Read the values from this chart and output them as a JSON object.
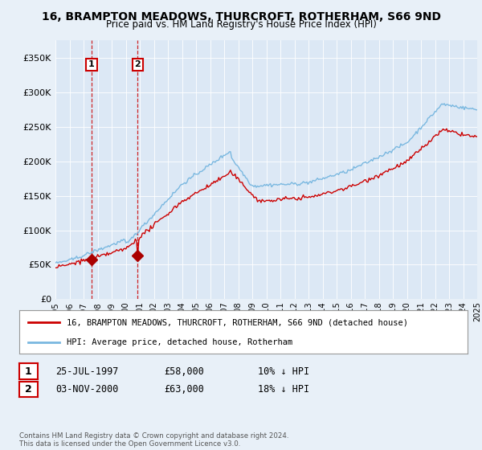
{
  "title": "16, BRAMPTON MEADOWS, THURCROFT, ROTHERHAM, S66 9ND",
  "subtitle": "Price paid vs. HM Land Registry's House Price Index (HPI)",
  "bg_color": "#e8f0f8",
  "plot_bg_color": "#dce8f5",
  "legend_line1": "16, BRAMPTON MEADOWS, THURCROFT, ROTHERHAM, S66 9ND (detached house)",
  "legend_line2": "HPI: Average price, detached house, Rotherham",
  "transaction1_date": "25-JUL-1997",
  "transaction1_price": 58000,
  "transaction1_hpi": "10% ↓ HPI",
  "transaction2_date": "03-NOV-2000",
  "transaction2_price": 63000,
  "transaction2_hpi": "18% ↓ HPI",
  "footer": "Contains HM Land Registry data © Crown copyright and database right 2024.\nThis data is licensed under the Open Government Licence v3.0.",
  "hpi_color": "#7ab8e0",
  "price_color": "#cc0000",
  "marker_color": "#aa0000",
  "vline_color": "#cc0000",
  "ylim_min": 0,
  "ylim_max": 375000,
  "yticks": [
    0,
    50000,
    100000,
    150000,
    200000,
    250000,
    300000,
    350000
  ],
  "year_start": 1995,
  "year_end": 2025
}
